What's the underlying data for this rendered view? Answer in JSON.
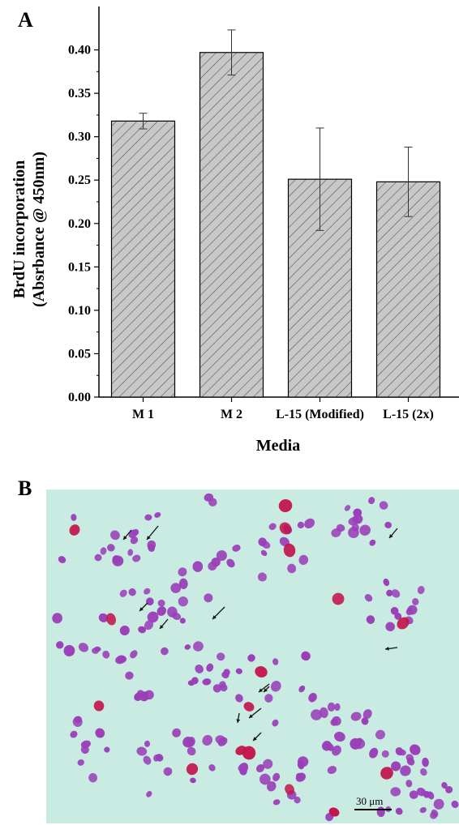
{
  "panels": {
    "a_label": "A",
    "b_label": "B"
  },
  "chart_data": {
    "type": "bar",
    "categories": [
      "M 1",
      "M 2",
      "L-15 (Modified)",
      "L-15 (2x)"
    ],
    "values": [
      0.318,
      0.397,
      0.251,
      0.248
    ],
    "errors": [
      0.009,
      0.026,
      0.059,
      0.04
    ],
    "xlabel": "Media",
    "ylabel_line1": "BrdU incorporation",
    "ylabel_line2": "(Absrbance @ 450nm)",
    "ylim": [
      0,
      0.45
    ],
    "yticks": [
      "0.00",
      "0.05",
      "0.10",
      "0.15",
      "0.20",
      "0.25",
      "0.30",
      "0.35",
      "0.40"
    ],
    "bar_fill": "#c8c8c8",
    "hatch_color": "#555555",
    "grid": false
  },
  "micrograph": {
    "background_color": "#c9ebe2",
    "cell_color": "#9a3fb8",
    "dark_cell_color": "#c2164c",
    "scale_bar_label": "30 μm"
  }
}
